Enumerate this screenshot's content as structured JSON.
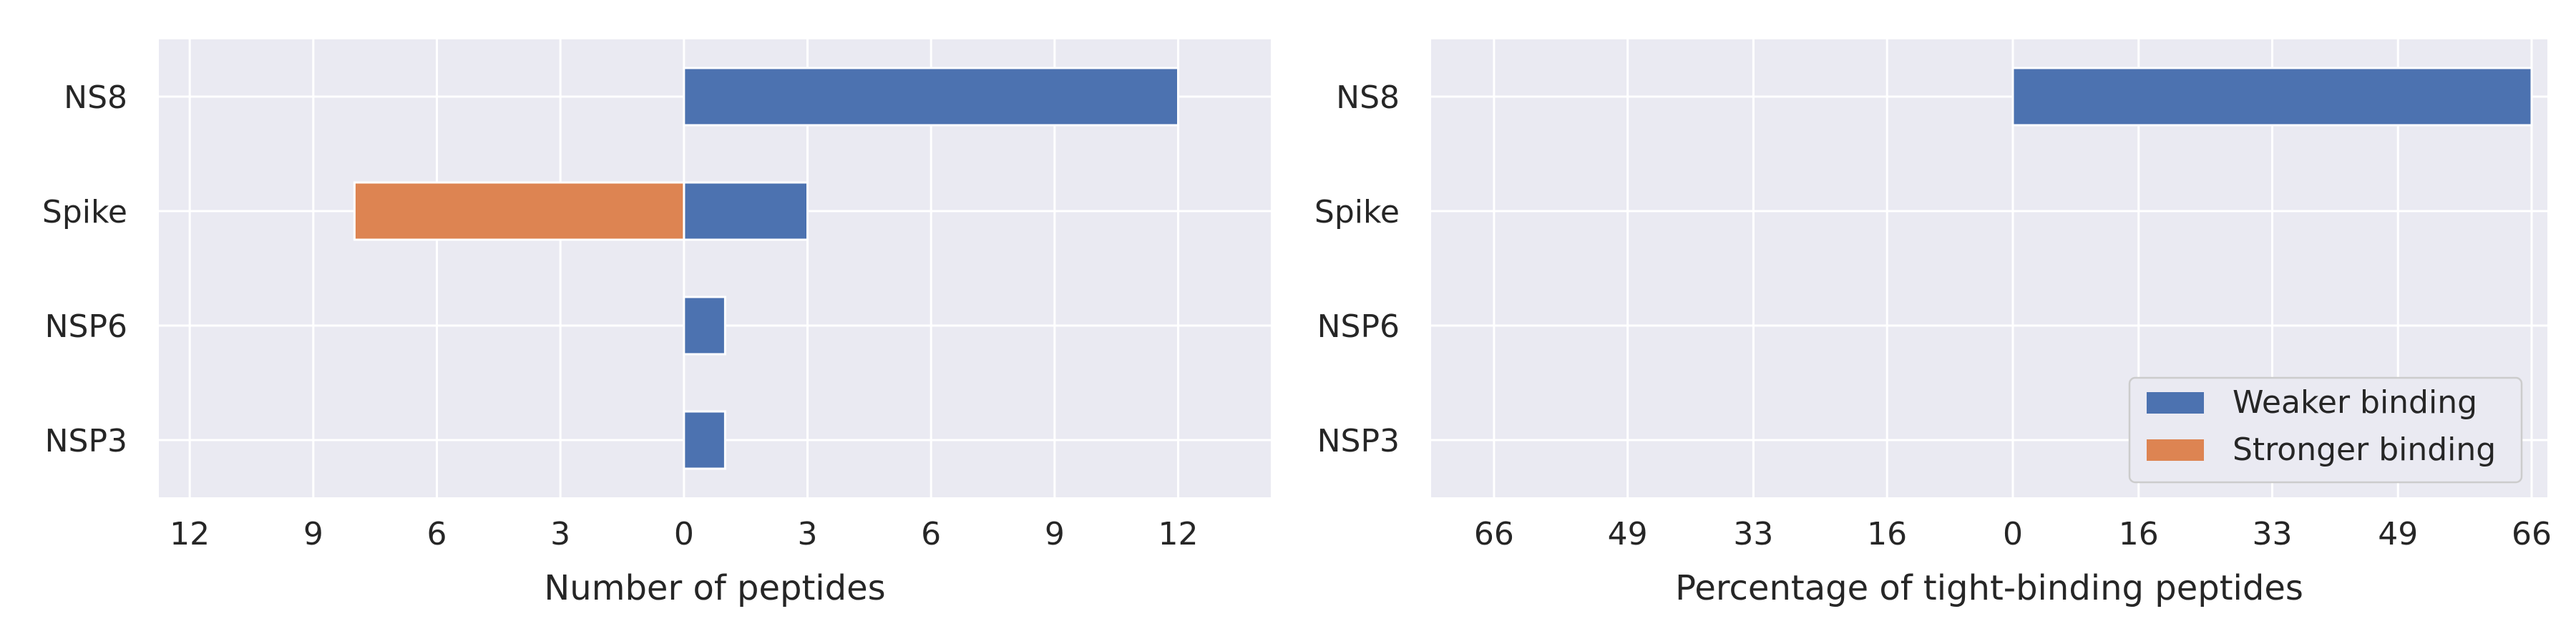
{
  "chart_data": [
    {
      "type": "bar",
      "orientation": "horizontal",
      "stacking": "diverging",
      "title": "",
      "xlabel": "Number of peptides",
      "ylabel": "",
      "categories": [
        "NS8",
        "Spike",
        "NSP6",
        "NSP3"
      ],
      "series": [
        {
          "name": "Weaker binding",
          "values": [
            12,
            3,
            1,
            1
          ],
          "color": "#4c72b0",
          "direction": "right"
        },
        {
          "name": "Stronger binding",
          "values": [
            0,
            8,
            0,
            0
          ],
          "color": "#dd8452",
          "direction": "left"
        }
      ],
      "xlim": [
        -12.75,
        14.25
      ],
      "xticks": [
        -12,
        -9,
        -6,
        -3,
        0,
        3,
        6,
        9,
        12
      ],
      "xtick_labels": [
        "12",
        "9",
        "6",
        "3",
        "0",
        "3",
        "6",
        "9",
        "12"
      ],
      "grid": true,
      "legend": false
    },
    {
      "type": "bar",
      "orientation": "horizontal",
      "stacking": "diverging",
      "title": "",
      "xlabel": "Percentage of tight-binding peptides",
      "ylabel": "",
      "categories": [
        "NS8",
        "Spike",
        "NSP6",
        "NSP3"
      ],
      "series": [
        {
          "name": "Weaker binding",
          "values": [
            66,
            0,
            0,
            0
          ],
          "color": "#4c72b0",
          "direction": "right"
        },
        {
          "name": "Stronger binding",
          "values": [
            0,
            0,
            0,
            0
          ],
          "color": "#dd8452",
          "direction": "left"
        }
      ],
      "xlim": [
        -74,
        68
      ],
      "xticks": [
        -66,
        -49,
        -33,
        -16,
        0,
        16,
        33,
        49,
        66
      ],
      "xtick_labels": [
        "66",
        "49",
        "33",
        "16",
        "0",
        "16",
        "33",
        "49",
        "66"
      ],
      "grid": true,
      "legend": true,
      "legend_placement": "lower-right"
    }
  ],
  "legend": {
    "entries": [
      {
        "label": "Weaker binding",
        "color": "#4c72b0"
      },
      {
        "label": "Stronger binding",
        "color": "#dd8452"
      }
    ]
  },
  "colors": {
    "plot_bg": "#eaeaf2",
    "grid": "#ffffff",
    "text": "#262626"
  }
}
